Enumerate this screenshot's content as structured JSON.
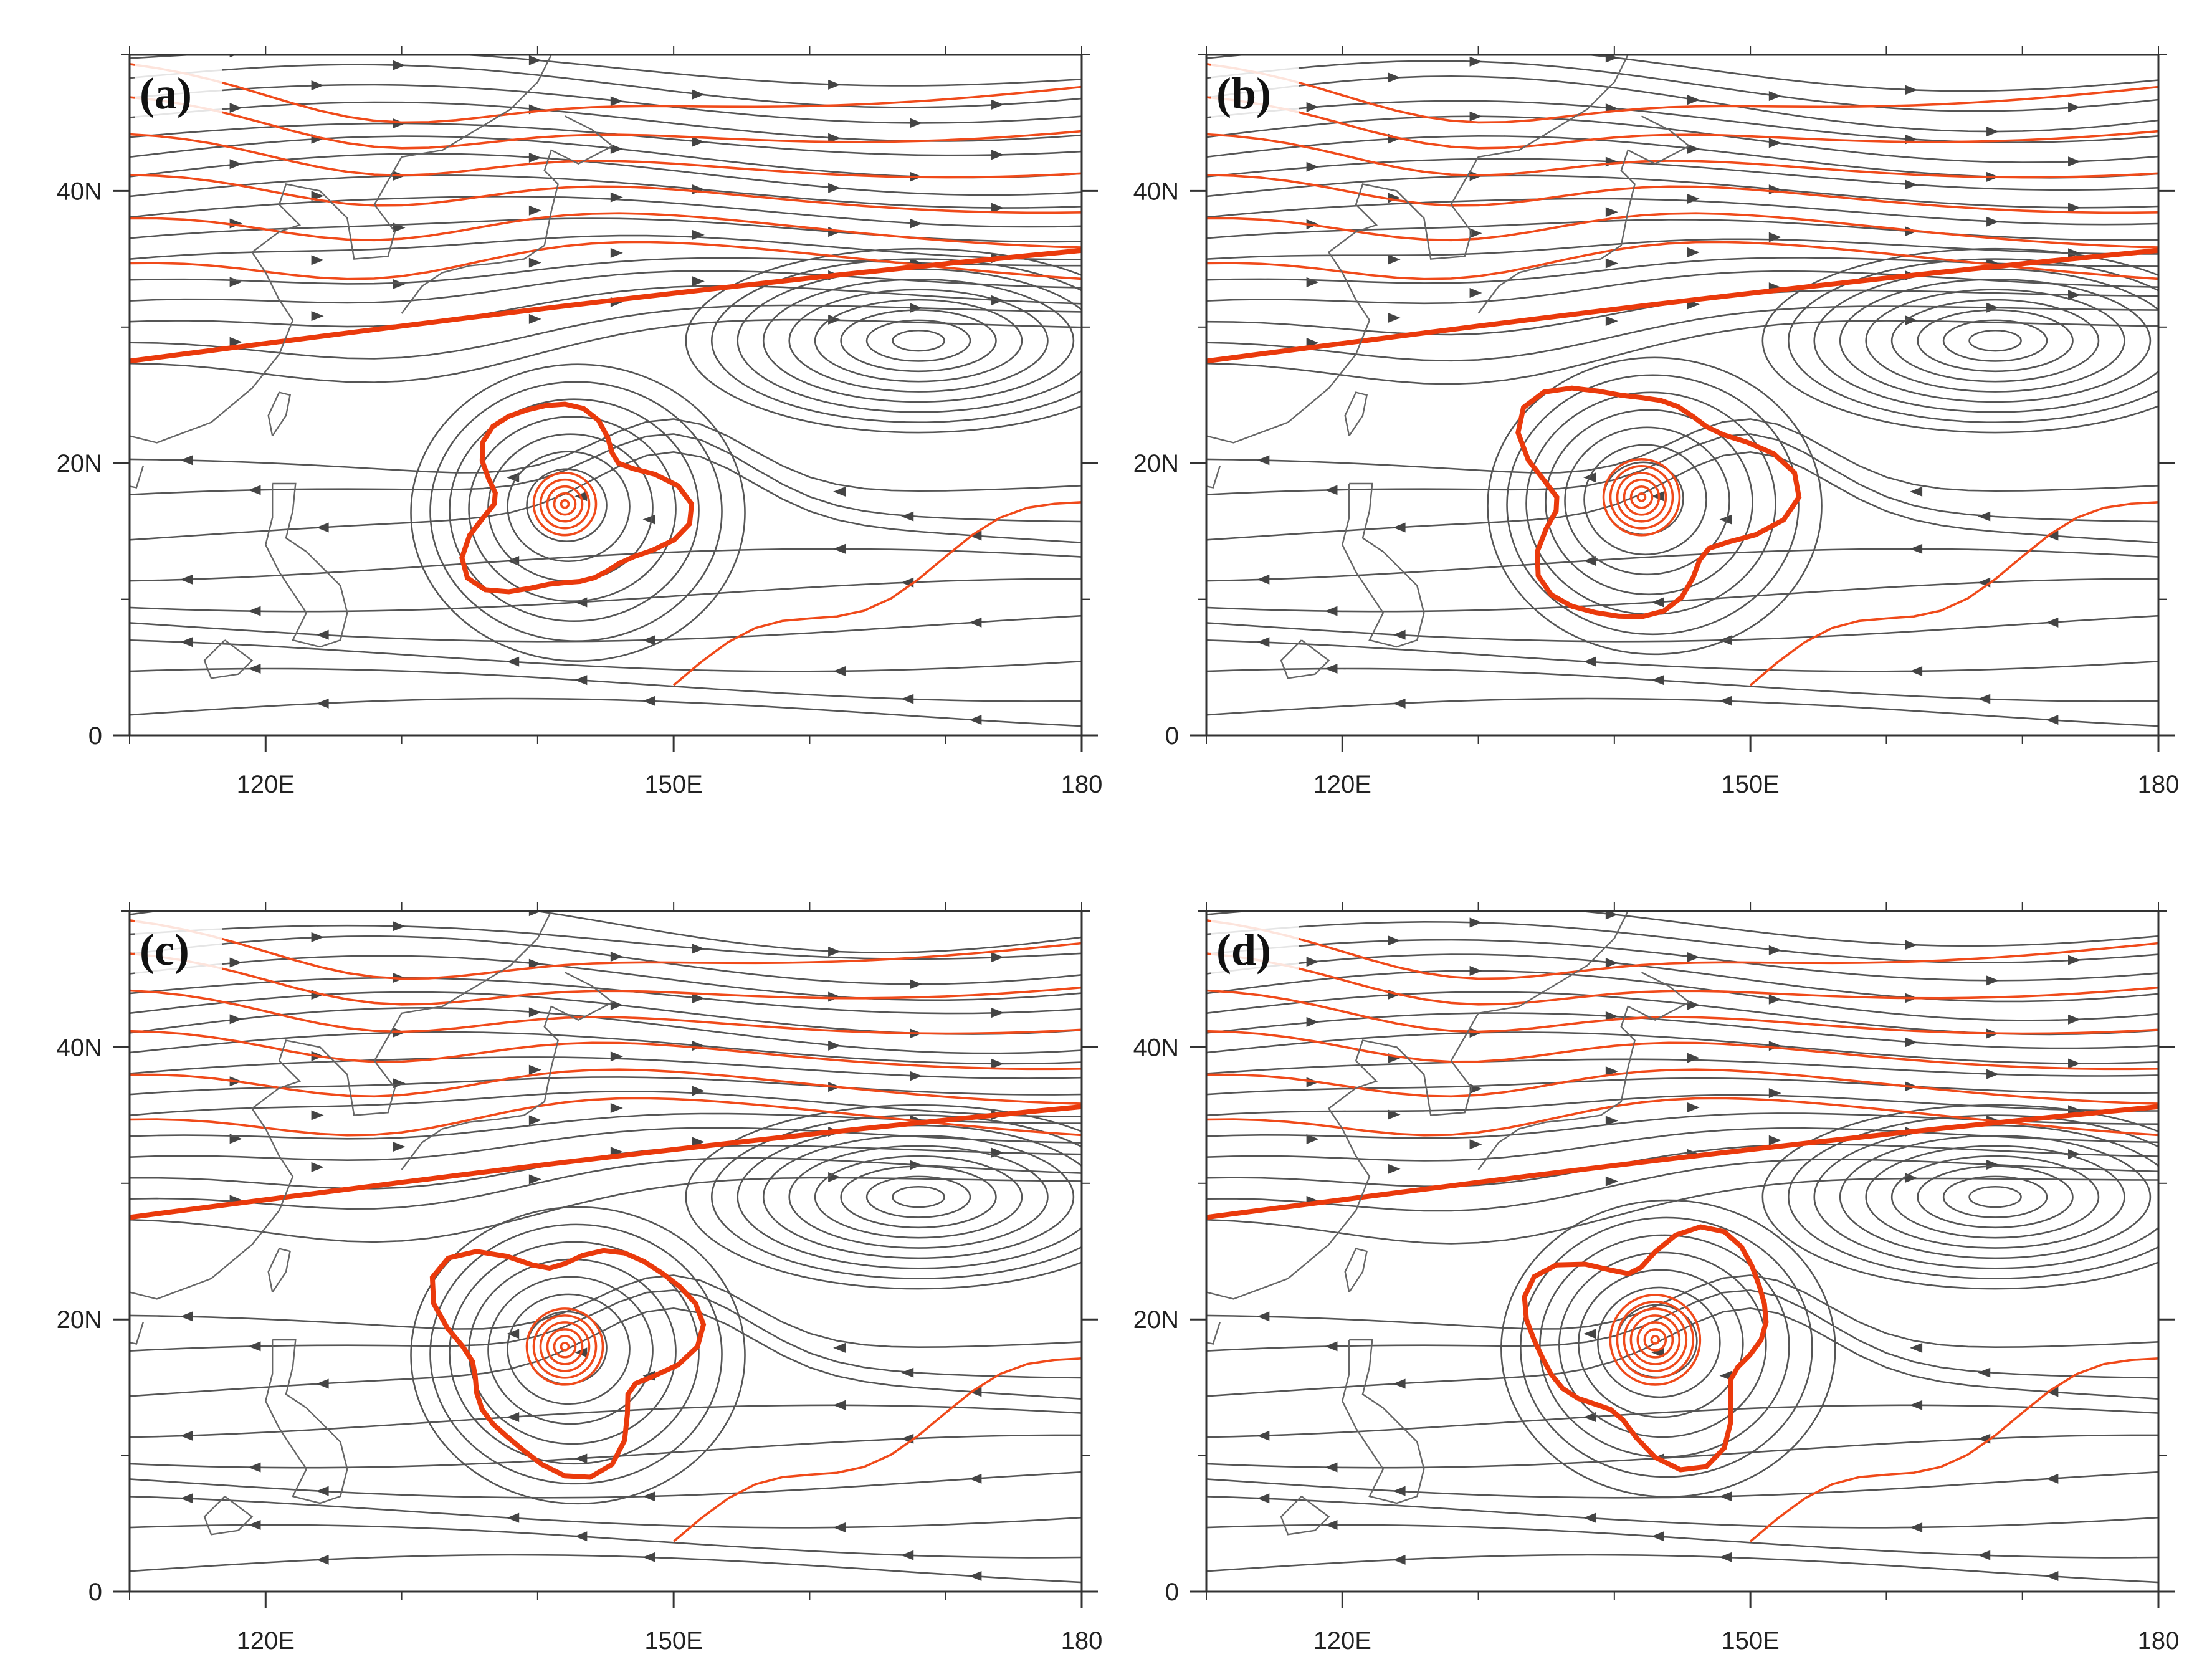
{
  "figure": {
    "panels": [
      {
        "label": "(a)"
      },
      {
        "label": "(b)"
      },
      {
        "label": "(c)"
      },
      {
        "label": "(d)"
      }
    ],
    "axes": {
      "lon_range": [
        110,
        180
      ],
      "lat_range": [
        0,
        50
      ],
      "x_ticks": [
        {
          "value": 120,
          "label": "120E"
        },
        {
          "value": 150,
          "label": "150E"
        },
        {
          "value": 180,
          "label": "180"
        }
      ],
      "y_ticks": [
        {
          "value": 0,
          "label": "0"
        },
        {
          "value": 20,
          "label": "20N"
        },
        {
          "value": 40,
          "label": "40N"
        }
      ]
    },
    "colors": {
      "streamline": "#555555",
      "contour": "#f04a1a",
      "coastline": "#666666"
    }
  }
}
